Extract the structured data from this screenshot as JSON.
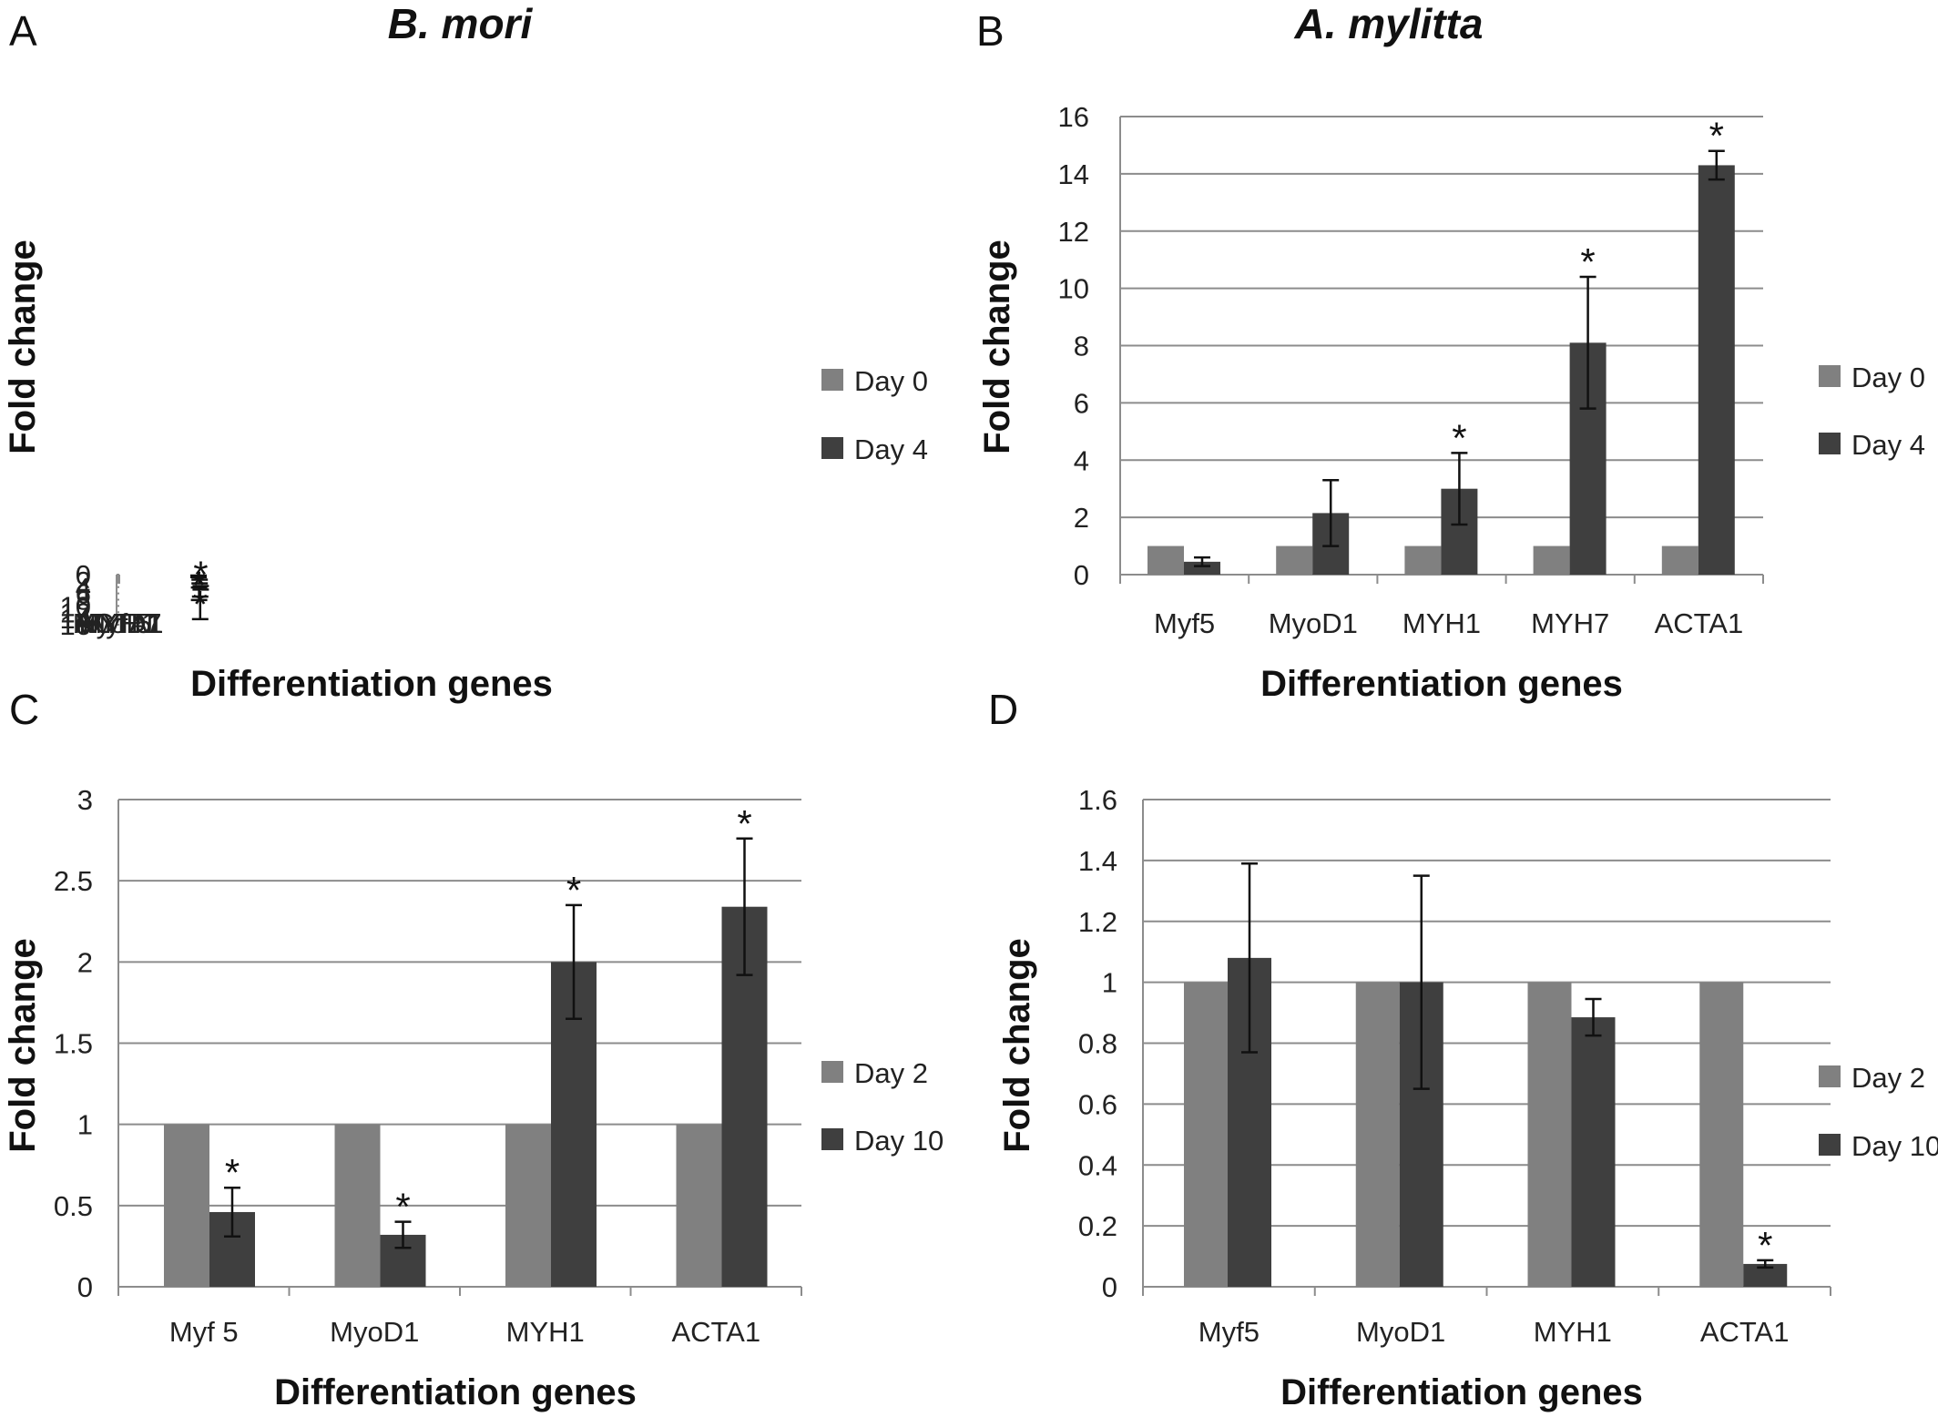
{
  "figure": {
    "panel_letters": [
      "A",
      "B",
      "C",
      "D"
    ]
  },
  "chart_data": [
    {
      "type": "bar",
      "panel": "A",
      "title": "B. mori",
      "xlabel": "Differentiation genes",
      "ylabel": "Fold change",
      "ylim": [
        0,
        16
      ],
      "yticks": [
        "0",
        "2",
        "4",
        "6",
        "8",
        "10",
        "12",
        "14",
        "16"
      ],
      "categories": [
        "Myf 5",
        "MyoD1",
        "MYH1",
        "MYH 7",
        "ACTA1"
      ],
      "series": [
        {
          "name": "Day 0",
          "color": "#808080",
          "values": [
            1,
            1,
            1,
            1,
            1
          ]
        },
        {
          "name": "Day 4",
          "color": "#3f3f3f",
          "values": [
            0.55,
            6.1,
            2.2,
            10.6,
            4.2
          ],
          "errors": [
            0.25,
            2.0,
            0.6,
            3.6,
            0.55
          ],
          "significance": [
            "",
            "*",
            "",
            "*",
            "*"
          ]
        }
      ],
      "legend": "right",
      "grid": true
    },
    {
      "type": "bar",
      "panel": "B",
      "title": "A. mylitta",
      "xlabel": "Differentiation genes",
      "ylabel": "Fold change",
      "ylim": [
        0,
        16
      ],
      "yticks": [
        "0",
        "2",
        "4",
        "6",
        "8",
        "10",
        "12",
        "14",
        "16"
      ],
      "categories": [
        "Myf5",
        "MyoD1",
        "MYH1",
        "MYH7",
        "ACTA1"
      ],
      "series": [
        {
          "name": "Day 0",
          "color": "#808080",
          "values": [
            1,
            1,
            1,
            1,
            1
          ]
        },
        {
          "name": "Day 4",
          "color": "#3f3f3f",
          "values": [
            0.45,
            2.15,
            3.0,
            8.1,
            14.3
          ],
          "errors": [
            0.15,
            1.15,
            1.25,
            2.3,
            0.5
          ],
          "significance": [
            "",
            "",
            "*",
            "*",
            "*"
          ]
        }
      ],
      "legend": "right",
      "grid": true
    },
    {
      "type": "bar",
      "panel": "C",
      "title": "",
      "xlabel": "Differentiation genes",
      "ylabel": "Fold change",
      "ylim": [
        0,
        3
      ],
      "yticks": [
        "0",
        "0.5",
        "1",
        "1.5",
        "2",
        "2.5",
        "3"
      ],
      "categories": [
        "Myf 5",
        "MyoD1",
        "MYH1",
        "ACTA1"
      ],
      "series": [
        {
          "name": "Day 2",
          "color": "#808080",
          "values": [
            1,
            1,
            1,
            1
          ]
        },
        {
          "name": "Day 10",
          "color": "#3f3f3f",
          "values": [
            0.46,
            0.32,
            2.0,
            2.34
          ],
          "errors": [
            0.15,
            0.08,
            0.35,
            0.42
          ],
          "significance": [
            "*",
            "*",
            "*",
            "*"
          ]
        }
      ],
      "legend": "right",
      "grid": true
    },
    {
      "type": "bar",
      "panel": "D",
      "title": "",
      "xlabel": "Differentiation genes",
      "ylabel": "Fold change",
      "ylim": [
        0,
        1.6
      ],
      "yticks": [
        "0",
        "0.2",
        "0.4",
        "0.6",
        "0.8",
        "1",
        "1.2",
        "1.4",
        "1.6"
      ],
      "categories": [
        "Myf5",
        "MyoD1",
        "MYH1",
        "ACTA1"
      ],
      "series": [
        {
          "name": "Day 2",
          "color": "#808080",
          "values": [
            1,
            1,
            1,
            1
          ]
        },
        {
          "name": "Day 10",
          "color": "#3f3f3f",
          "values": [
            1.08,
            1.0,
            0.885,
            0.075
          ],
          "errors": [
            0.31,
            0.35,
            0.06,
            0.012
          ],
          "significance": [
            "",
            "",
            "",
            "*"
          ]
        }
      ],
      "legend": "right",
      "grid": true
    }
  ]
}
